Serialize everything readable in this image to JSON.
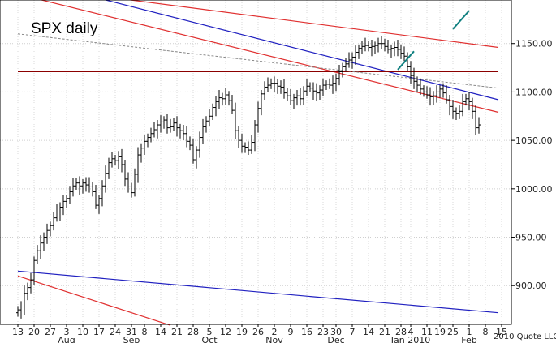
{
  "chart_data": {
    "type": "ohlc",
    "title": "SPX daily",
    "copyright": "2010 Quote LLC",
    "ylim": [
      860,
      1195
    ],
    "yticks": [
      {
        "label": "1150.00",
        "value": 1150
      },
      {
        "label": "1100.00",
        "value": 1100
      },
      {
        "label": "1050.00",
        "value": 1050
      },
      {
        "label": "1000.00",
        "value": 1000
      },
      {
        "label": "950.00",
        "value": 950
      },
      {
        "label": "900.00",
        "value": 900
      }
    ],
    "xticks": [
      {
        "label": "13",
        "i": 0
      },
      {
        "label": "20",
        "i": 5
      },
      {
        "label": "27",
        "i": 10
      },
      {
        "label": "3",
        "i": 15
      },
      {
        "label": "10",
        "i": 20
      },
      {
        "label": "17",
        "i": 25
      },
      {
        "label": "24",
        "i": 30
      },
      {
        "label": "31",
        "i": 35
      },
      {
        "label": "8",
        "i": 39
      },
      {
        "label": "14",
        "i": 44
      },
      {
        "label": "21",
        "i": 49
      },
      {
        "label": "28",
        "i": 54
      },
      {
        "label": "5",
        "i": 59
      },
      {
        "label": "12",
        "i": 64
      },
      {
        "label": "19",
        "i": 69
      },
      {
        "label": "26",
        "i": 74
      },
      {
        "label": "2",
        "i": 79
      },
      {
        "label": "9",
        "i": 84
      },
      {
        "label": "16",
        "i": 89
      },
      {
        "label": "23",
        "i": 94
      },
      {
        "label": "30",
        "i": 98
      },
      {
        "label": "7",
        "i": 103
      },
      {
        "label": "14",
        "i": 108
      },
      {
        "label": "21",
        "i": 113
      },
      {
        "label": "28",
        "i": 118
      },
      {
        "label": "4",
        "i": 121
      },
      {
        "label": "11",
        "i": 126
      },
      {
        "label": "19",
        "i": 130
      },
      {
        "label": "25",
        "i": 134
      },
      {
        "label": "1",
        "i": 139
      },
      {
        "label": "8",
        "i": 144
      },
      {
        "label": "15",
        "i": 149
      }
    ],
    "months": [
      {
        "label": "Aug",
        "i": 15
      },
      {
        "label": "Sep",
        "i": 35
      },
      {
        "label": "Oct",
        "i": 59
      },
      {
        "label": "Nov",
        "i": 79
      },
      {
        "label": "Dec",
        "i": 98
      },
      {
        "label": "Jan 2010",
        "i": 121
      },
      {
        "label": "Feb",
        "i": 139
      }
    ],
    "close": [
      875,
      878,
      892,
      898,
      906,
      926,
      936,
      944,
      950,
      957,
      962,
      970,
      976,
      981,
      987,
      990,
      997,
      1003,
      1006,
      1003,
      1006,
      1004,
      1002,
      997,
      983,
      990,
      1003,
      1016,
      1027,
      1031,
      1029,
      1033,
      1025,
      1010,
      1002,
      996,
      1015,
      1035,
      1042,
      1049,
      1053,
      1057,
      1061,
      1066,
      1069,
      1071,
      1063,
      1064,
      1068,
      1063,
      1060,
      1057,
      1049,
      1045,
      1030,
      1040,
      1053,
      1064,
      1070,
      1075,
      1084,
      1090,
      1094,
      1093,
      1097,
      1091,
      1081,
      1060,
      1050,
      1044,
      1043,
      1040,
      1048,
      1066,
      1083,
      1098,
      1105,
      1107,
      1109,
      1109,
      1106,
      1105,
      1099,
      1096,
      1091,
      1094,
      1096,
      1093,
      1101,
      1106,
      1104,
      1101,
      1099,
      1102,
      1107,
      1108,
      1107,
      1109,
      1114,
      1121,
      1126,
      1129,
      1133,
      1136,
      1141,
      1145,
      1147,
      1148,
      1146,
      1147,
      1148,
      1150,
      1150,
      1147,
      1144,
      1145,
      1146,
      1144,
      1140,
      1137,
      1126,
      1117,
      1111,
      1107,
      1103,
      1100,
      1097,
      1095,
      1096,
      1100,
      1103,
      1099,
      1092,
      1085,
      1080,
      1078,
      1080,
      1090,
      1093,
      1090,
      1080,
      1063,
      1066
    ],
    "trendlines": [
      {
        "color": "#e03030",
        "x": [
          0,
          148
        ],
        "y": [
          1201,
          1079
        ]
      },
      {
        "color": "#e03030",
        "x": [
          0,
          148
        ],
        "y": [
          1210,
          1146
        ]
      },
      {
        "color": "#e03030",
        "x": [
          0,
          47
        ],
        "y": [
          910,
          859
        ]
      },
      {
        "color": "#2020c0",
        "x": [
          0,
          148
        ],
        "y": [
          1218,
          1092
        ]
      },
      {
        "color": "#2020c0",
        "x": [
          0,
          148
        ],
        "y": [
          915,
          872
        ]
      },
      {
        "color": "#8b0000",
        "x": [
          0,
          148
        ],
        "y": [
          1121,
          1121
        ]
      },
      {
        "color": "#888888",
        "dashed": true,
        "x": [
          0,
          148
        ],
        "y": [
          1160,
          1104
        ]
      }
    ],
    "annotations": [
      {
        "name": "arrow-1",
        "color": "#108080",
        "x": [
          117,
          122
        ],
        "y": [
          1123,
          1142
        ]
      },
      {
        "name": "arrow-2",
        "color": "#108080",
        "x": [
          134,
          139
        ],
        "y": [
          1165,
          1184
        ]
      }
    ]
  }
}
